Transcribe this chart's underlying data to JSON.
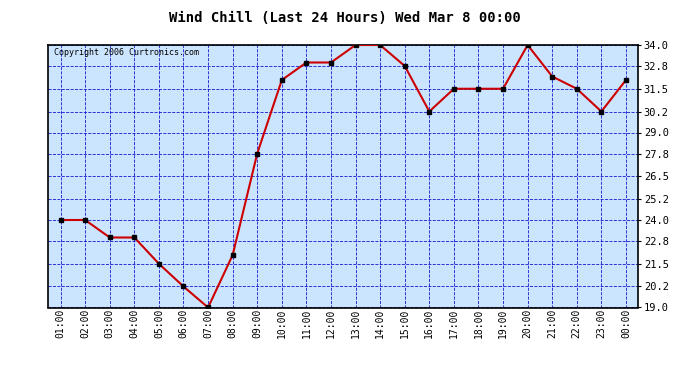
{
  "title": "Wind Chill (Last 24 Hours) Wed Mar 8 00:00",
  "copyright": "Copyright 2006 Curtronics.com",
  "x_labels": [
    "01:00",
    "02:00",
    "03:00",
    "04:00",
    "05:00",
    "06:00",
    "07:00",
    "08:00",
    "09:00",
    "10:00",
    "11:00",
    "12:00",
    "13:00",
    "14:00",
    "15:00",
    "16:00",
    "17:00",
    "18:00",
    "19:00",
    "20:00",
    "21:00",
    "22:00",
    "23:00",
    "00:00"
  ],
  "y_values": [
    24.0,
    24.0,
    23.0,
    23.0,
    21.5,
    20.2,
    19.0,
    22.0,
    27.8,
    32.0,
    33.0,
    33.0,
    34.0,
    34.0,
    32.8,
    30.2,
    31.5,
    31.5,
    31.5,
    34.0,
    32.2,
    31.5,
    30.2,
    32.0
  ],
  "ylim": [
    19.0,
    34.0
  ],
  "y_ticks": [
    19.0,
    20.2,
    21.5,
    22.8,
    24.0,
    25.2,
    26.5,
    27.8,
    29.0,
    30.2,
    31.5,
    32.8,
    34.0
  ],
  "line_color": "#cc0000",
  "marker_color": "#000000",
  "bg_color": "#cce5ff",
  "grid_color": "#0000cc",
  "border_color": "#000000",
  "title_color": "#000000",
  "copyright_color": "#000000",
  "tick_color": "#000000",
  "fig_width": 6.9,
  "fig_height": 3.75,
  "dpi": 100
}
